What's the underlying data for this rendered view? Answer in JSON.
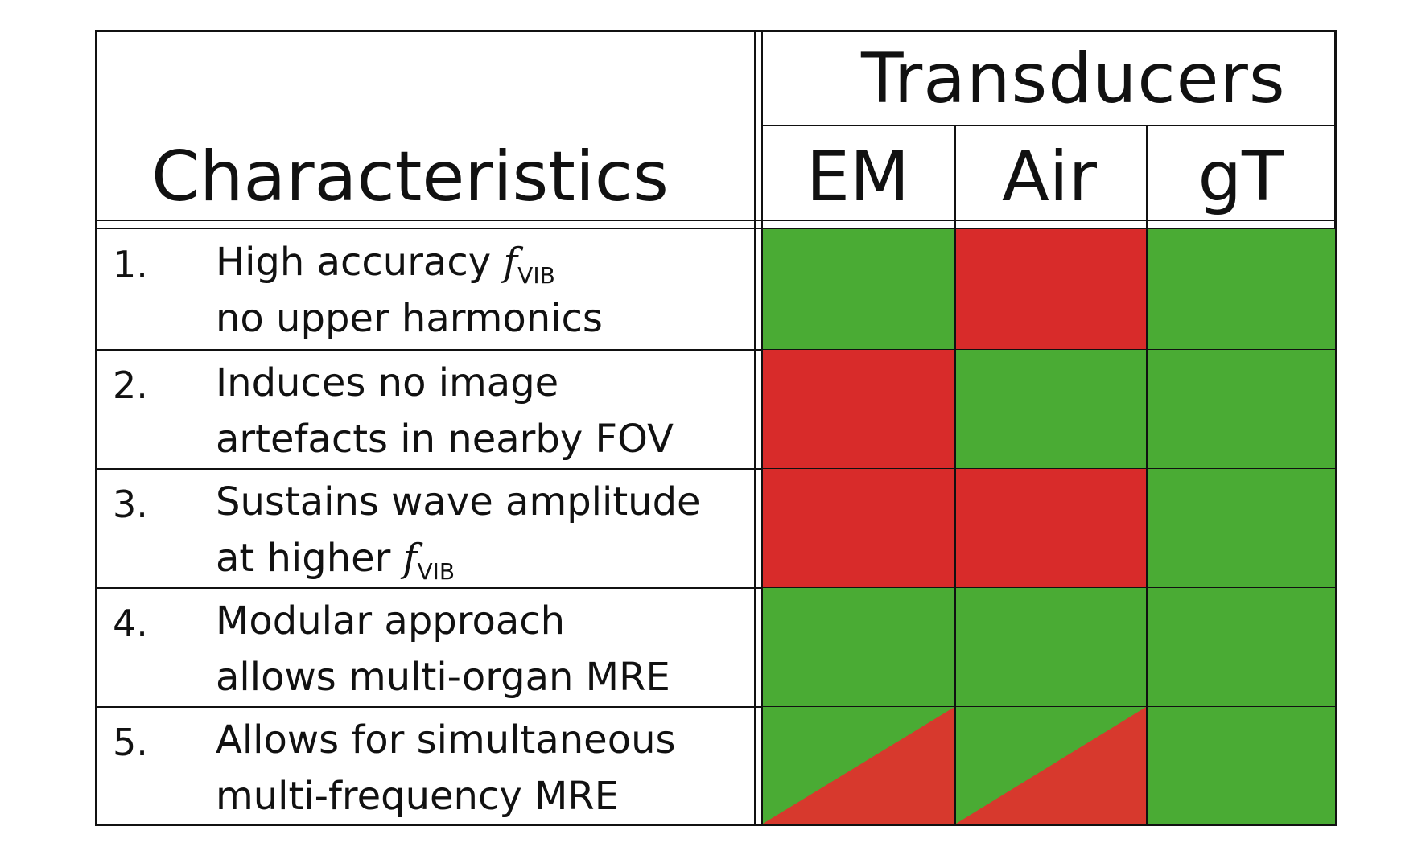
{
  "header": {
    "group_title": "Transducers",
    "row_title": "Characteristics",
    "columns": [
      "EM",
      "Air",
      "gT"
    ]
  },
  "colors": {
    "good": "#4aab34",
    "bad": "#d82b2a",
    "partial_bad": "#d7392d"
  },
  "rows": [
    {
      "number": "1.",
      "line1": "High accuracy ",
      "line1_symbol": "f",
      "line1_sub": "VIB",
      "line2": "no upper harmonics",
      "line2_symbol": "",
      "line2_sub": "",
      "status": [
        "good",
        "bad",
        "good"
      ]
    },
    {
      "number": "2.",
      "line1": "Induces no image",
      "line1_symbol": "",
      "line1_sub": "",
      "line2": "artefacts in nearby FOV",
      "line2_symbol": "",
      "line2_sub": "",
      "status": [
        "bad",
        "good",
        "good"
      ]
    },
    {
      "number": "3.",
      "line1": "Sustains wave amplitude",
      "line1_symbol": "",
      "line1_sub": "",
      "line2": "at higher ",
      "line2_symbol": "f",
      "line2_sub": "VIB",
      "status": [
        "bad",
        "bad",
        "good"
      ]
    },
    {
      "number": "4.",
      "line1": "Modular approach",
      "line1_symbol": "",
      "line1_sub": "",
      "line2": "allows multi-organ MRE",
      "line2_symbol": "",
      "line2_sub": "",
      "status": [
        "good",
        "good",
        "good"
      ]
    },
    {
      "number": "5.",
      "line1": "Allows for simultaneous",
      "line1_symbol": "",
      "line1_sub": "",
      "line2": "multi-frequency MRE",
      "line2_symbol": "",
      "line2_sub": "",
      "status": [
        "partial",
        "partial",
        "good"
      ]
    }
  ]
}
